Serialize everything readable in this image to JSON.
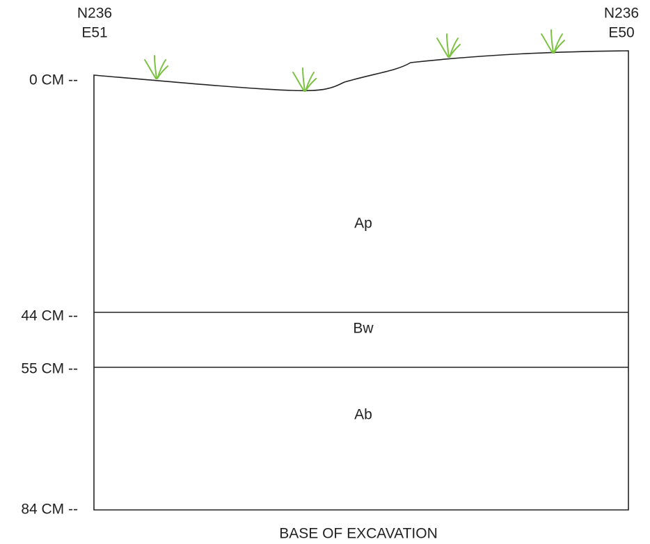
{
  "corners": {
    "left": {
      "line1": "N236",
      "line2": "E51"
    },
    "right": {
      "line1": "N236",
      "line2": "E50"
    }
  },
  "depths": [
    "0 CM --",
    "44 CM --",
    "55 CM --",
    "84 CM --"
  ],
  "horizons": [
    "Ap",
    "Bw",
    "Ab"
  ],
  "footer": "BASE OF EXCAVATION"
}
